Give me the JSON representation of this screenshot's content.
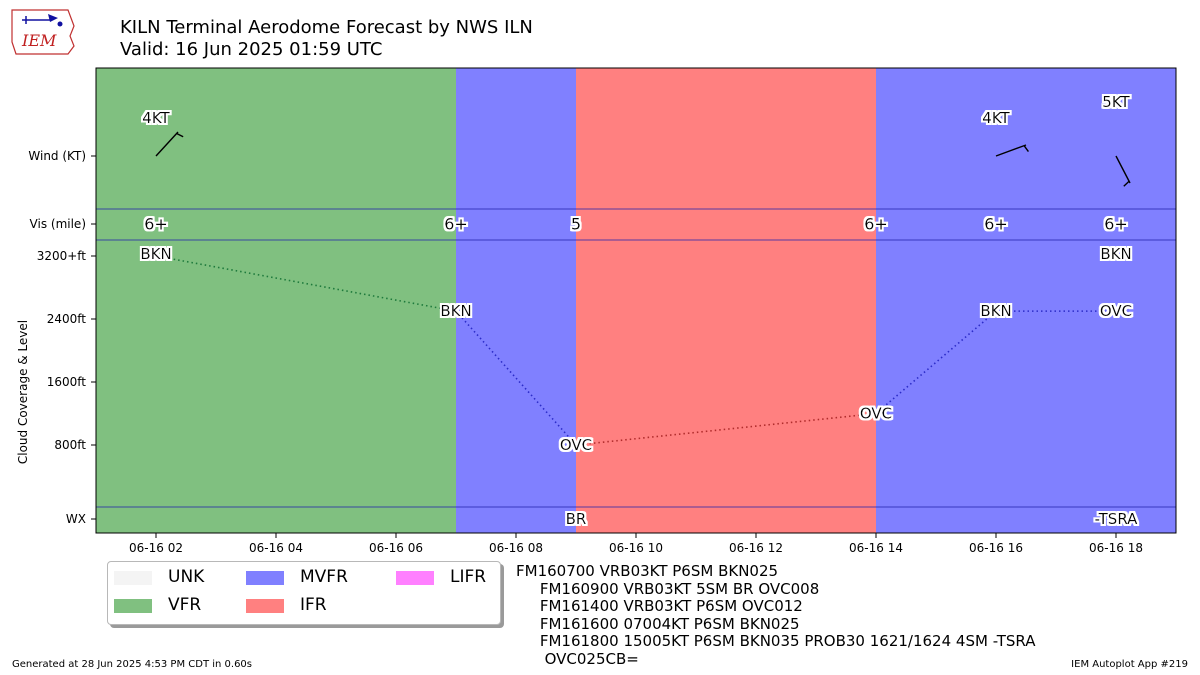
{
  "title": "KILN Terminal Aerodome Forecast by NWS ILN",
  "subtitle": "Valid: 16 Jun 2025 01:59 UTC",
  "logo_text": "IEM",
  "colors": {
    "UNK": "#f4f4f4",
    "VFR": "#80c080",
    "MVFR": "#8080ff",
    "IFR": "#ff8080",
    "LIFR": "#ff80ff",
    "VFR_line": "#1e7a3c",
    "MVFR_line": "#2c2cc8",
    "IFR_line": "#b02c2c"
  },
  "chart_data": {
    "type": "timeline",
    "ylabel": "Cloud Coverage & Level",
    "row_labels": [
      "Wind (KT)",
      "Vis (mile)",
      "WX"
    ],
    "cloud_tick_labels": [
      "3200+ft",
      "2400ft",
      "1600ft",
      "800ft"
    ],
    "cloud_tick_values": [
      3200,
      2400,
      1600,
      800
    ],
    "xlim": [
      "2025-06-16 01:00",
      "2025-06-16 19:00"
    ],
    "xticks": [
      {
        "t": 2,
        "label": "06-16 02"
      },
      {
        "t": 4,
        "label": "06-16 04"
      },
      {
        "t": 6,
        "label": "06-16 06"
      },
      {
        "t": 8,
        "label": "06-16 08"
      },
      {
        "t": 10,
        "label": "06-16 10"
      },
      {
        "t": 12,
        "label": "06-16 12"
      },
      {
        "t": 14,
        "label": "06-16 14"
      },
      {
        "t": 16,
        "label": "06-16 16"
      },
      {
        "t": 18,
        "label": "06-16 18"
      }
    ],
    "category_bands": [
      {
        "start": 1,
        "end": 7,
        "category": "VFR"
      },
      {
        "start": 7,
        "end": 9,
        "category": "MVFR"
      },
      {
        "start": 9,
        "end": 14,
        "category": "IFR"
      },
      {
        "start": 14,
        "end": 19,
        "category": "MVFR"
      }
    ],
    "wind": [
      {
        "t": 2,
        "speed_label": "4KT",
        "speed_kt": 4,
        "direction": "VRB"
      },
      {
        "t": 16,
        "speed_label": "4KT",
        "speed_kt": 4,
        "direction": 70
      },
      {
        "t": 18,
        "speed_label": "5KT",
        "speed_kt": 5,
        "direction": 150
      }
    ],
    "visibility": [
      {
        "t": 2,
        "label": "6+"
      },
      {
        "t": 7,
        "label": "6+"
      },
      {
        "t": 9,
        "label": "5"
      },
      {
        "t": 14,
        "label": "6+"
      },
      {
        "t": 16,
        "label": "6+"
      },
      {
        "t": 18,
        "label": "6+"
      }
    ],
    "clouds": [
      {
        "t": 2,
        "cover": "BKN",
        "level": 3200,
        "segment_category": "VFR"
      },
      {
        "t": 7,
        "cover": "BKN",
        "level": 2500,
        "segment_category": "MVFR"
      },
      {
        "t": 9,
        "cover": "OVC",
        "level": 800,
        "segment_category": "IFR"
      },
      {
        "t": 14,
        "cover": "OVC",
        "level": 1200,
        "segment_category": "MVFR"
      },
      {
        "t": 16,
        "cover": "BKN",
        "level": 2500,
        "segment_category": "MVFR"
      },
      {
        "t": 18,
        "cover": "OVC",
        "level": 2500,
        "segment_category": null
      }
    ],
    "clouds_extra": [
      {
        "t": 18,
        "cover": "BKN",
        "level": 3200
      }
    ],
    "weather": [
      {
        "t": 9,
        "label": "BR"
      },
      {
        "t": 18,
        "label": "-TSRA"
      }
    ],
    "legend": [
      {
        "label": "UNK",
        "category": "UNK"
      },
      {
        "label": "MVFR",
        "category": "MVFR"
      },
      {
        "label": "LIFR",
        "category": "LIFR"
      },
      {
        "label": "VFR",
        "category": "VFR"
      },
      {
        "label": "IFR",
        "category": "IFR"
      }
    ],
    "legend_placement": "below-left"
  },
  "taf_lines": [
    "FM160700 VRB03KT P6SM BKN025",
    "     FM160900 VRB03KT 5SM BR OVC008",
    "     FM161400 VRB03KT P6SM OVC012",
    "     FM161600 07004KT P6SM BKN025",
    "     FM161800 15005KT P6SM BKN035 PROB30 1621/1624 4SM -TSRA",
    "      OVC025CB="
  ],
  "footer_left": "Generated at 28 Jun 2025 4:53 PM CDT in 0.60s",
  "footer_right": "IEM Autoplot App #219"
}
